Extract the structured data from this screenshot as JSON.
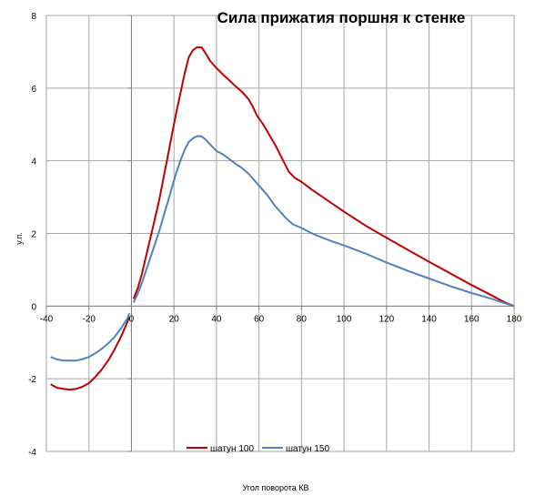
{
  "chart_data": {
    "type": "line",
    "title": "Сила прижатия поршня к стенке",
    "xlabel": "Угол поворота  КВ",
    "ylabel": "у.п.",
    "xlim": [
      -40,
      180
    ],
    "ylim": [
      -4,
      8
    ],
    "xticks": [
      "-40",
      "-20",
      "0",
      "20",
      "40",
      "60",
      "80",
      "100",
      "120",
      "140",
      "160",
      "180"
    ],
    "yticks": [
      "-4",
      "-2",
      "0",
      "2",
      "4",
      "6",
      "8"
    ],
    "grid": true,
    "legend_position": "bottom",
    "series": [
      {
        "name": "шатун 100",
        "color": "#c00000",
        "points": [
          [
            -38,
            -2.15
          ],
          [
            -35,
            -2.25
          ],
          [
            -32,
            -2.28
          ],
          [
            -29,
            -2.3
          ],
          [
            -26,
            -2.28
          ],
          [
            -23,
            -2.22
          ],
          [
            -20,
            -2.12
          ],
          [
            -17,
            -1.95
          ],
          [
            -14,
            -1.75
          ],
          [
            -11,
            -1.5
          ],
          [
            -8,
            -1.2
          ],
          [
            -5,
            -0.85
          ],
          [
            -2,
            -0.45
          ],
          [
            -1,
            -0.3
          ],
          [
            1,
            0.2
          ],
          [
            3,
            0.5
          ],
          [
            5,
            0.9
          ],
          [
            7,
            1.4
          ],
          [
            9,
            1.9
          ],
          [
            11,
            2.4
          ],
          [
            13,
            2.9
          ],
          [
            15,
            3.5
          ],
          [
            17,
            4.1
          ],
          [
            19,
            4.7
          ],
          [
            21,
            5.3
          ],
          [
            23,
            5.85
          ],
          [
            25,
            6.4
          ],
          [
            27,
            6.85
          ],
          [
            29,
            7.05
          ],
          [
            31,
            7.13
          ],
          [
            33,
            7.12
          ],
          [
            35,
            6.95
          ],
          [
            37,
            6.75
          ],
          [
            40,
            6.55
          ],
          [
            43,
            6.38
          ],
          [
            46,
            6.22
          ],
          [
            49,
            6.05
          ],
          [
            52,
            5.9
          ],
          [
            55,
            5.7
          ],
          [
            57,
            5.5
          ],
          [
            59,
            5.25
          ],
          [
            62,
            5.0
          ],
          [
            65,
            4.7
          ],
          [
            68,
            4.4
          ],
          [
            71,
            4.05
          ],
          [
            74,
            3.7
          ],
          [
            77,
            3.52
          ],
          [
            80,
            3.42
          ],
          [
            85,
            3.2
          ],
          [
            90,
            3.0
          ],
          [
            95,
            2.8
          ],
          [
            100,
            2.6
          ],
          [
            110,
            2.22
          ],
          [
            120,
            1.88
          ],
          [
            130,
            1.55
          ],
          [
            140,
            1.22
          ],
          [
            150,
            0.9
          ],
          [
            160,
            0.58
          ],
          [
            170,
            0.28
          ],
          [
            175,
            0.12
          ],
          [
            180,
            0.0
          ]
        ]
      },
      {
        "name": "шатун 150",
        "color": "#4f81bd",
        "points": [
          [
            -38,
            -1.4
          ],
          [
            -35,
            -1.47
          ],
          [
            -32,
            -1.5
          ],
          [
            -29,
            -1.5
          ],
          [
            -26,
            -1.5
          ],
          [
            -23,
            -1.46
          ],
          [
            -20,
            -1.4
          ],
          [
            -17,
            -1.3
          ],
          [
            -14,
            -1.18
          ],
          [
            -11,
            -1.03
          ],
          [
            -8,
            -0.85
          ],
          [
            -5,
            -0.62
          ],
          [
            -2,
            -0.35
          ],
          [
            -1,
            -0.2
          ],
          [
            1,
            0.1
          ],
          [
            3,
            0.35
          ],
          [
            5,
            0.65
          ],
          [
            7,
            1.0
          ],
          [
            9,
            1.35
          ],
          [
            11,
            1.7
          ],
          [
            13,
            2.05
          ],
          [
            15,
            2.45
          ],
          [
            17,
            2.85
          ],
          [
            19,
            3.25
          ],
          [
            21,
            3.65
          ],
          [
            23,
            4.0
          ],
          [
            25,
            4.3
          ],
          [
            27,
            4.52
          ],
          [
            29,
            4.62
          ],
          [
            31,
            4.68
          ],
          [
            33,
            4.67
          ],
          [
            35,
            4.58
          ],
          [
            37,
            4.45
          ],
          [
            40,
            4.27
          ],
          [
            43,
            4.18
          ],
          [
            46,
            4.05
          ],
          [
            49,
            3.92
          ],
          [
            52,
            3.8
          ],
          [
            55,
            3.65
          ],
          [
            58,
            3.45
          ],
          [
            61,
            3.25
          ],
          [
            64,
            3.05
          ],
          [
            67,
            2.8
          ],
          [
            70,
            2.6
          ],
          [
            73,
            2.4
          ],
          [
            76,
            2.25
          ],
          [
            80,
            2.15
          ],
          [
            85,
            2.0
          ],
          [
            90,
            1.88
          ],
          [
            95,
            1.77
          ],
          [
            100,
            1.67
          ],
          [
            110,
            1.45
          ],
          [
            120,
            1.2
          ],
          [
            130,
            0.97
          ],
          [
            140,
            0.76
          ],
          [
            150,
            0.55
          ],
          [
            160,
            0.36
          ],
          [
            170,
            0.19
          ],
          [
            175,
            0.09
          ],
          [
            180,
            0.0
          ]
        ]
      }
    ]
  }
}
